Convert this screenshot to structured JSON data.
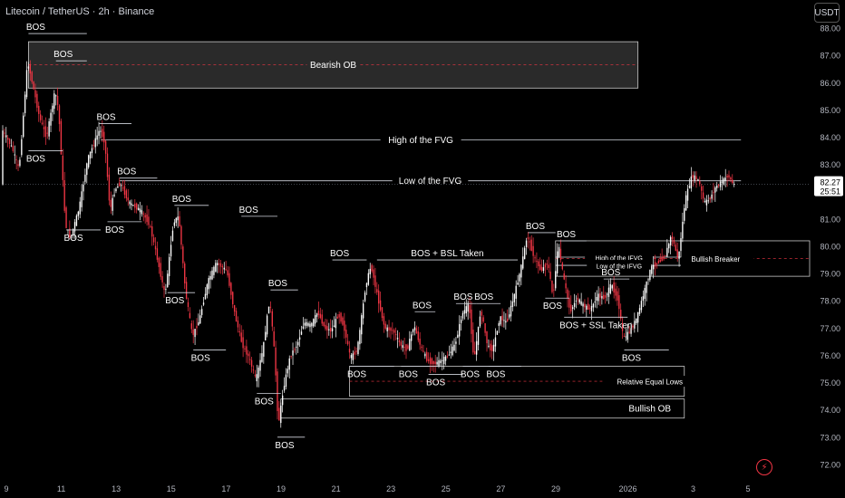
{
  "header": {
    "symbol": "Litecoin / TetherUS · 2h · Binance",
    "currency": "USDT"
  },
  "colors": {
    "up": "#ffffff",
    "down": "#f23645",
    "line": "#d1d4dc",
    "price_line": "#555a66",
    "box_stroke": "#c8c8c8"
  },
  "icons": {
    "alert": "bolt-icon"
  },
  "chart_data": {
    "type": "candlestick",
    "yaxis": {
      "min": 71.5,
      "max": 88.3,
      "ticks": [
        72.0,
        73.0,
        74.0,
        75.0,
        76.0,
        77.0,
        78.0,
        79.0,
        80.0,
        81.0,
        82.0,
        83.0,
        84.0,
        85.0,
        86.0,
        87.0,
        88.0
      ]
    },
    "xaxis": {
      "ticks": [
        "9",
        "11",
        "13",
        "15",
        "17",
        "19",
        "21",
        "23",
        "25",
        "27",
        "29",
        "2026",
        "3",
        "5"
      ],
      "tick_bars": [
        0,
        32,
        64,
        96,
        128,
        160,
        192,
        224,
        256,
        288,
        320,
        362,
        400,
        432
      ],
      "total_bars": 470
    },
    "current_price": {
      "value": 82.27,
      "countdown": "25:51"
    },
    "anchors": [
      {
        "b": 0,
        "p": 84.3
      },
      {
        "b": 6,
        "p": 83.6
      },
      {
        "b": 10,
        "p": 82.8
      },
      {
        "b": 15,
        "p": 86.8
      },
      {
        "b": 18,
        "p": 85.9
      },
      {
        "b": 22,
        "p": 84.7
      },
      {
        "b": 26,
        "p": 84.0
      },
      {
        "b": 31,
        "p": 85.7
      },
      {
        "b": 33,
        "p": 85.0
      },
      {
        "b": 37,
        "p": 80.8
      },
      {
        "b": 40,
        "p": 80.3
      },
      {
        "b": 45,
        "p": 81.4
      },
      {
        "b": 50,
        "p": 83.2
      },
      {
        "b": 57,
        "p": 84.3
      },
      {
        "b": 60,
        "p": 83.8
      },
      {
        "b": 63,
        "p": 81.3
      },
      {
        "b": 66,
        "p": 82.1
      },
      {
        "b": 69,
        "p": 82.3
      },
      {
        "b": 74,
        "p": 81.6
      },
      {
        "b": 81,
        "p": 81.3
      },
      {
        "b": 86,
        "p": 80.8
      },
      {
        "b": 90,
        "p": 79.7
      },
      {
        "b": 95,
        "p": 78.2
      },
      {
        "b": 100,
        "p": 80.9
      },
      {
        "b": 103,
        "p": 81.1
      },
      {
        "b": 107,
        "p": 78.3
      },
      {
        "b": 111,
        "p": 76.7
      },
      {
        "b": 115,
        "p": 77.3
      },
      {
        "b": 120,
        "p": 78.7
      },
      {
        "b": 125,
        "p": 79.4
      },
      {
        "b": 131,
        "p": 79.1
      },
      {
        "b": 136,
        "p": 77.4
      },
      {
        "b": 140,
        "p": 76.4
      },
      {
        "b": 144,
        "p": 75.9
      },
      {
        "b": 148,
        "p": 75.1
      },
      {
        "b": 152,
        "p": 76.2
      },
      {
        "b": 156,
        "p": 78.1
      },
      {
        "b": 159,
        "p": 75.9
      },
      {
        "b": 161,
        "p": 73.4
      },
      {
        "b": 164,
        "p": 74.8
      },
      {
        "b": 168,
        "p": 76.0
      },
      {
        "b": 172,
        "p": 76.4
      },
      {
        "b": 176,
        "p": 77.2
      },
      {
        "b": 180,
        "p": 77.1
      },
      {
        "b": 184,
        "p": 77.6
      },
      {
        "b": 188,
        "p": 77.0
      },
      {
        "b": 192,
        "p": 76.9
      },
      {
        "b": 196,
        "p": 77.5
      },
      {
        "b": 199,
        "p": 77.1
      },
      {
        "b": 203,
        "p": 75.9
      },
      {
        "b": 207,
        "p": 76.2
      },
      {
        "b": 212,
        "p": 78.6
      },
      {
        "b": 215,
        "p": 79.3
      },
      {
        "b": 219,
        "p": 78.1
      },
      {
        "b": 223,
        "p": 77.0
      },
      {
        "b": 228,
        "p": 76.9
      },
      {
        "b": 232,
        "p": 76.4
      },
      {
        "b": 236,
        "p": 76.2
      },
      {
        "b": 240,
        "p": 77.1
      },
      {
        "b": 244,
        "p": 76.3
      },
      {
        "b": 248,
        "p": 75.8
      },
      {
        "b": 252,
        "p": 75.7
      },
      {
        "b": 256,
        "p": 75.8
      },
      {
        "b": 260,
        "p": 76.0
      },
      {
        "b": 264,
        "p": 76.4
      },
      {
        "b": 268,
        "p": 77.5
      },
      {
        "b": 272,
        "p": 77.9
      },
      {
        "b": 275,
        "p": 75.8
      },
      {
        "b": 279,
        "p": 77.7
      },
      {
        "b": 283,
        "p": 76.3
      },
      {
        "b": 286,
        "p": 76.2
      },
      {
        "b": 290,
        "p": 77.4
      },
      {
        "b": 294,
        "p": 77.2
      },
      {
        "b": 298,
        "p": 78.1
      },
      {
        "b": 302,
        "p": 79.1
      },
      {
        "b": 306,
        "p": 80.4
      },
      {
        "b": 310,
        "p": 79.6
      },
      {
        "b": 314,
        "p": 79.1
      },
      {
        "b": 318,
        "p": 79.4
      },
      {
        "b": 321,
        "p": 78.1
      },
      {
        "b": 324,
        "p": 80.1
      },
      {
        "b": 327,
        "p": 78.9
      },
      {
        "b": 331,
        "p": 77.6
      },
      {
        "b": 335,
        "p": 78.1
      },
      {
        "b": 339,
        "p": 77.8
      },
      {
        "b": 343,
        "p": 77.7
      },
      {
        "b": 347,
        "p": 78.2
      },
      {
        "b": 351,
        "p": 78.1
      },
      {
        "b": 355,
        "p": 78.6
      },
      {
        "b": 359,
        "p": 78.0
      },
      {
        "b": 362,
        "p": 76.6
      },
      {
        "b": 366,
        "p": 76.9
      },
      {
        "b": 370,
        "p": 77.4
      },
      {
        "b": 374,
        "p": 78.3
      },
      {
        "b": 378,
        "p": 79.2
      },
      {
        "b": 382,
        "p": 79.4
      },
      {
        "b": 386,
        "p": 79.6
      },
      {
        "b": 390,
        "p": 80.4
      },
      {
        "b": 394,
        "p": 79.5
      },
      {
        "b": 398,
        "p": 81.7
      },
      {
        "b": 402,
        "p": 82.6
      },
      {
        "b": 406,
        "p": 82.4
      },
      {
        "b": 409,
        "p": 81.6
      },
      {
        "b": 412,
        "p": 81.7
      },
      {
        "b": 416,
        "p": 82.2
      },
      {
        "b": 420,
        "p": 82.4
      },
      {
        "b": 423,
        "p": 82.6
      },
      {
        "b": 426,
        "p": 82.27
      }
    ],
    "zones": [
      {
        "label": "Bearish OB",
        "b1": 15,
        "b2": 370,
        "top": 87.5,
        "bottom": 85.8,
        "fill": "#2a2a2a",
        "dashed_mid": true
      },
      {
        "label": "Relative Equal Lows",
        "b1": 202,
        "b2": 397,
        "top": 75.6,
        "bottom": 74.5,
        "fill": "#000000",
        "dashed_mid": true
      },
      {
        "label": "Bullish OB",
        "b1": 162,
        "b2": 397,
        "top": 74.4,
        "bottom": 73.7,
        "fill": "#000000",
        "dashed_mid": false
      },
      {
        "label": "Bullish Breaker",
        "b1": 322,
        "b2": 470,
        "top": 80.2,
        "bottom": 78.9,
        "fill": "#000000",
        "dashed_mid": true
      }
    ],
    "levels": [
      {
        "label": "High of the FVG",
        "b1": 57,
        "b2": 430,
        "price": 83.9
      },
      {
        "label": "Low of the FVG",
        "b1": 68,
        "b2": 430,
        "price": 82.4
      },
      {
        "label": "High of the IFVG",
        "b1": 322,
        "b2": 395,
        "price": 79.6
      },
      {
        "label": "Low of the IFVG",
        "b1": 322,
        "b2": 395,
        "price": 79.3
      }
    ],
    "bos_lines": [
      {
        "label": "BOS",
        "b1": 15,
        "b2": 49,
        "price": 87.8,
        "pos": "above"
      },
      {
        "label": "BOS",
        "b1": 31,
        "b2": 49,
        "price": 86.8,
        "pos": "above"
      },
      {
        "label": "BOS",
        "b1": 15,
        "b2": 35,
        "price": 83.5,
        "pos": "below"
      },
      {
        "label": "BOS",
        "b1": 56,
        "b2": 75,
        "price": 84.5,
        "pos": "above"
      },
      {
        "label": "BOS",
        "b1": 37,
        "b2": 57,
        "price": 80.6,
        "pos": "below"
      },
      {
        "label": "BOS",
        "b1": 68,
        "b2": 90,
        "price": 82.5,
        "pos": "above"
      },
      {
        "label": "BOS",
        "b1": 61,
        "b2": 81,
        "price": 80.9,
        "pos": "below"
      },
      {
        "label": "BOS",
        "b1": 100,
        "b2": 120,
        "price": 81.5,
        "pos": "above"
      },
      {
        "label": "BOS",
        "b1": 96,
        "b2": 112,
        "price": 78.3,
        "pos": "below"
      },
      {
        "label": "BOS",
        "b1": 139,
        "b2": 160,
        "price": 81.1,
        "pos": "above"
      },
      {
        "label": "BOS",
        "b1": 111,
        "b2": 130,
        "price": 76.2,
        "pos": "below"
      },
      {
        "label": "BOS",
        "b1": 156,
        "b2": 172,
        "price": 78.4,
        "pos": "above"
      },
      {
        "label": "BOS",
        "b1": 148,
        "b2": 162,
        "price": 74.6,
        "pos": "below"
      },
      {
        "label": "BOS",
        "b1": 192,
        "b2": 212,
        "price": 79.5,
        "pos": "above"
      },
      {
        "label": "BOS + BSL Taken",
        "b1": 218,
        "b2": 300,
        "price": 79.5,
        "pos": "above"
      },
      {
        "label": "BOS",
        "b1": 160,
        "b2": 176,
        "price": 73.0,
        "pos": "below"
      },
      {
        "label": "BOS",
        "b1": 202,
        "b2": 228,
        "price": 75.6,
        "pos": "below"
      },
      {
        "label": "BOS",
        "b1": 232,
        "b2": 255,
        "price": 75.6,
        "pos": "below"
      },
      {
        "label": "BOS",
        "b1": 240,
        "b2": 252,
        "price": 77.6,
        "pos": "above"
      },
      {
        "label": "BOS",
        "b1": 248,
        "b2": 268,
        "price": 75.3,
        "pos": "below"
      },
      {
        "label": "BOS",
        "b1": 264,
        "b2": 276,
        "price": 77.9,
        "pos": "above"
      },
      {
        "label": "BOS",
        "b1": 276,
        "b2": 290,
        "price": 77.9,
        "pos": "above"
      },
      {
        "label": "BOS",
        "b1": 268,
        "b2": 290,
        "price": 75.6,
        "pos": "below"
      },
      {
        "label": "BOS",
        "b1": 283,
        "b2": 302,
        "price": 75.6,
        "pos": "below"
      },
      {
        "label": "BOS",
        "b1": 306,
        "b2": 322,
        "price": 80.5,
        "pos": "above"
      },
      {
        "label": "BOS",
        "b1": 324,
        "b2": 340,
        "price": 80.2,
        "pos": "above"
      },
      {
        "label": "BOS",
        "b1": 350,
        "b2": 365,
        "price": 78.8,
        "pos": "above"
      },
      {
        "label": "BOS",
        "b1": 316,
        "b2": 330,
        "price": 78.1,
        "pos": "below"
      },
      {
        "label": "BOS + SSL Taken",
        "b1": 327,
        "b2": 364,
        "price": 77.4,
        "pos": "below"
      },
      {
        "label": "BOS",
        "b1": 362,
        "b2": 388,
        "price": 76.2,
        "pos": "below"
      }
    ]
  }
}
